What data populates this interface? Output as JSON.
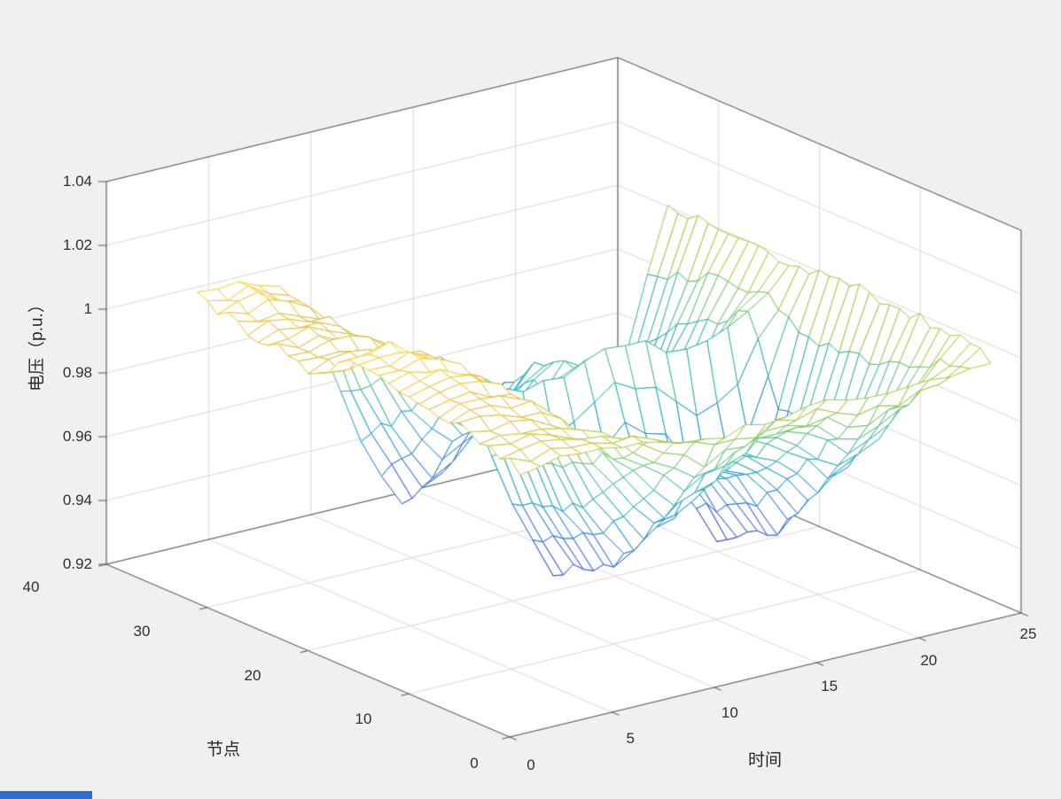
{
  "figure": {
    "background": "#f0f0f0",
    "axes_background": "#ffffff",
    "grid_color": "#d8d8d8",
    "axis_line_color": "#555555",
    "tick_text_color": "#2e2e2e",
    "accent_strip_color": "#2e6bd3"
  },
  "chart_data": {
    "type": "mesh3d-surface",
    "title": "",
    "xlabel": "时间",
    "ylabel": "节点",
    "zlabel": "电压（p.u.）",
    "xlim": [
      0,
      25
    ],
    "ylim": [
      0,
      40
    ],
    "zlim": [
      0.92,
      1.04
    ],
    "view": {
      "azimuth": -37.5,
      "elevation": 30
    },
    "grid": true,
    "legend": "none",
    "xtick_values": [
      0,
      5,
      10,
      15,
      20,
      25
    ],
    "xtick_labels": [
      "0",
      "5",
      "10",
      "15",
      "20",
      "25"
    ],
    "ytick_values": [
      0,
      10,
      20,
      30,
      40
    ],
    "ytick_labels": [
      "0",
      "10",
      "20",
      "30",
      "40"
    ],
    "ztick_values": [
      0.92,
      0.94,
      0.96,
      0.98,
      1.0,
      1.02,
      1.04
    ],
    "ztick_labels": [
      "0.92",
      "0.94",
      "0.96",
      "0.98",
      "1",
      "1.02",
      "1.04"
    ],
    "surface": {
      "t": [
        1,
        3,
        5,
        7,
        9,
        11,
        13,
        15,
        17,
        19,
        21,
        23,
        24
      ],
      "n": [
        1,
        4,
        8,
        12,
        16,
        18,
        21,
        24,
        27,
        30,
        33
      ],
      "z": [
        [
          1.001,
          1.004,
          1.007,
          1.01,
          1.011,
          1.012,
          1.003,
          1.006,
          1.007,
          1.01,
          1.012
        ],
        [
          1.001,
          1.004,
          1.008,
          1.012,
          1.013,
          1.014,
          1.004,
          1.007,
          1.008,
          1.011,
          1.014
        ],
        [
          1.0,
          1.002,
          1.005,
          1.007,
          1.008,
          1.008,
          1.002,
          1.004,
          1.004,
          1.006,
          1.008
        ],
        [
          1.0,
          0.997,
          0.994,
          0.992,
          0.991,
          0.99,
          0.998,
          0.995,
          0.994,
          0.992,
          0.99
        ],
        [
          0.998,
          0.987,
          0.973,
          0.962,
          0.957,
          0.955,
          0.989,
          0.978,
          0.975,
          0.964,
          0.955
        ],
        [
          0.997,
          0.979,
          0.958,
          0.941,
          0.934,
          0.93,
          0.983,
          0.965,
          0.962,
          0.944,
          0.93
        ],
        [
          0.997,
          0.982,
          0.964,
          0.949,
          0.943,
          0.94,
          0.985,
          0.97,
          0.967,
          0.952,
          0.94
        ],
        [
          0.998,
          0.988,
          0.976,
          0.966,
          0.962,
          0.96,
          0.99,
          0.98,
          0.978,
          0.968,
          0.96
        ],
        [
          0.998,
          0.985,
          0.97,
          0.958,
          0.953,
          0.95,
          0.988,
          0.975,
          0.973,
          0.96,
          0.95
        ],
        [
          0.996,
          0.978,
          0.957,
          0.939,
          0.932,
          0.928,
          0.982,
          0.964,
          0.96,
          0.942,
          0.928
        ],
        [
          0.997,
          0.983,
          0.965,
          0.951,
          0.945,
          0.942,
          0.986,
          0.971,
          0.968,
          0.954,
          0.942
        ],
        [
          0.999,
          0.996,
          0.991,
          0.987,
          0.986,
          0.985,
          0.996,
          0.993,
          0.992,
          0.988,
          0.985
        ],
        [
          1.0,
          1.002,
          1.003,
          1.004,
          1.005,
          1.005,
          1.001,
          1.003,
          1.003,
          1.004,
          1.005
        ]
      ],
      "t_fine_count": 24,
      "n_fine_count": 33,
      "noise_amplitude": 0.0018
    },
    "colormap": {
      "name": "parula",
      "stops": [
        [
          0.0,
          "#3e26a8"
        ],
        [
          0.15,
          "#3154e6"
        ],
        [
          0.3,
          "#1f7ede"
        ],
        [
          0.45,
          "#11a1c8"
        ],
        [
          0.6,
          "#40bc98"
        ],
        [
          0.72,
          "#80c760"
        ],
        [
          0.82,
          "#bac738"
        ],
        [
          0.92,
          "#edbd3c"
        ],
        [
          1.0,
          "#f9d932"
        ]
      ]
    }
  }
}
